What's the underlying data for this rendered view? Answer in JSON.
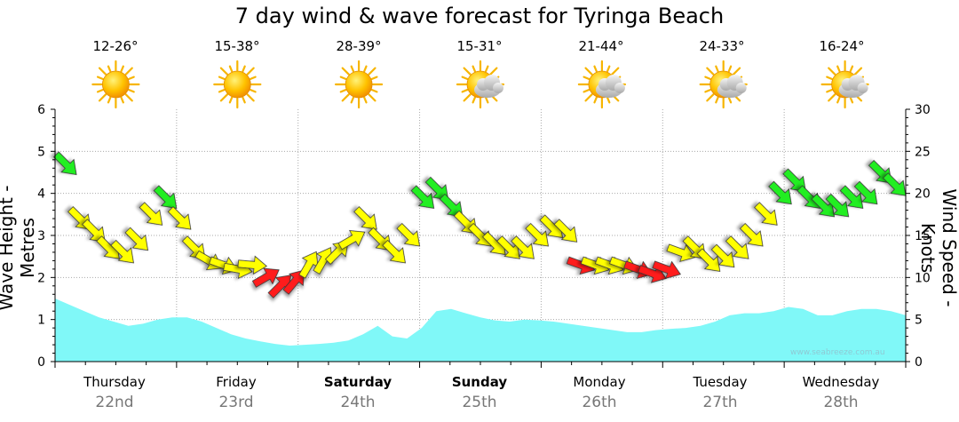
{
  "title": "7 day wind & wave forecast for Tyringa Beach",
  "watermark": "www.seabreeze.com.au",
  "left_axis_title": "Wave Height - Metres",
  "right_axis_title": "Wind Speed - Knots",
  "days": [
    {
      "name": "Thursday",
      "date": "22nd",
      "temp": "12-26°",
      "icon": "sun-icon",
      "bold": false
    },
    {
      "name": "Friday",
      "date": "23rd",
      "temp": "15-38°",
      "icon": "sun-icon",
      "bold": false
    },
    {
      "name": "Saturday",
      "date": "24th",
      "temp": "28-39°",
      "icon": "sun-icon",
      "bold": true
    },
    {
      "name": "Sunday",
      "date": "25th",
      "temp": "15-31°",
      "icon": "sun-cloud-icon",
      "bold": true
    },
    {
      "name": "Monday",
      "date": "26th",
      "temp": "21-44°",
      "icon": "sun-cloud-icon",
      "bold": false
    },
    {
      "name": "Tuesday",
      "date": "27th",
      "temp": "24-33°",
      "icon": "sun-cloud-icon",
      "bold": false
    },
    {
      "name": "Wednesday",
      "date": "28th",
      "temp": "16-24°",
      "icon": "sun-cloud-icon",
      "bold": false
    }
  ],
  "chart_data": {
    "type": "area",
    "left_ticks": [
      "0",
      "1",
      "2",
      "3",
      "4",
      "5",
      "6"
    ],
    "right_ticks": [
      "0",
      "5",
      "10",
      "15",
      "20",
      "25",
      "30"
    ],
    "ylim_left": [
      0,
      6
    ],
    "ylim_right": [
      0,
      30
    ],
    "grid": true,
    "wave_height": {
      "name": "Wave Height - Metres",
      "color": "#80f8f8",
      "values": [
        1.5,
        1.35,
        1.2,
        1.05,
        0.95,
        0.85,
        0.9,
        1.0,
        1.05,
        1.05,
        0.95,
        0.8,
        0.65,
        0.55,
        0.48,
        0.42,
        0.38,
        0.4,
        0.42,
        0.45,
        0.5,
        0.65,
        0.85,
        0.6,
        0.55,
        0.8,
        1.2,
        1.25,
        1.15,
        1.05,
        0.98,
        0.95,
        1.0,
        0.98,
        0.95,
        0.9,
        0.85,
        0.8,
        0.75,
        0.7,
        0.7,
        0.75,
        0.78,
        0.8,
        0.85,
        0.95,
        1.1,
        1.15,
        1.15,
        1.2,
        1.3,
        1.25,
        1.1,
        1.1,
        1.2,
        1.25,
        1.25,
        1.2,
        1.1
      ]
    },
    "wind_speed": {
      "name": "Wind Speed - Knots",
      "color_legend": {
        "light": "#ffff00",
        "moderate": "#00ee00",
        "strong": "#ff0000"
      },
      "points": [
        {
          "k": 23.5,
          "c": "g",
          "d": 135
        },
        {
          "k": 17,
          "c": "y",
          "d": 135
        },
        {
          "k": 15.5,
          "c": "y",
          "d": 135
        },
        {
          "k": 13.5,
          "c": "y",
          "d": 135
        },
        {
          "k": 13,
          "c": "y",
          "d": 135
        },
        {
          "k": 14.5,
          "c": "y",
          "d": 135
        },
        {
          "k": 17.5,
          "c": "y",
          "d": 135
        },
        {
          "k": 19.5,
          "c": "g",
          "d": 135
        },
        {
          "k": 17,
          "c": "y",
          "d": 135
        },
        {
          "k": 13.5,
          "c": "y",
          "d": 135
        },
        {
          "k": 12,
          "c": "y",
          "d": 120
        },
        {
          "k": 11.5,
          "c": "y",
          "d": 110
        },
        {
          "k": 11,
          "c": "y",
          "d": 100
        },
        {
          "k": 11.5,
          "c": "y",
          "d": 95
        },
        {
          "k": 10,
          "c": "r",
          "d": 60
        },
        {
          "k": 9,
          "c": "r",
          "d": 45
        },
        {
          "k": 9.5,
          "c": "r",
          "d": 40
        },
        {
          "k": 11.5,
          "c": "y",
          "d": 30
        },
        {
          "k": 12,
          "c": "y",
          "d": 30
        },
        {
          "k": 13,
          "c": "y",
          "d": 45
        },
        {
          "k": 14.5,
          "c": "y",
          "d": 60
        },
        {
          "k": 17,
          "c": "y",
          "d": 135
        },
        {
          "k": 14.5,
          "c": "y",
          "d": 135
        },
        {
          "k": 13,
          "c": "y",
          "d": 135
        },
        {
          "k": 15,
          "c": "y",
          "d": 135
        },
        {
          "k": 19.5,
          "c": "g",
          "d": 135
        },
        {
          "k": 20.5,
          "c": "g",
          "d": 135
        },
        {
          "k": 18.5,
          "c": "g",
          "d": 135
        },
        {
          "k": 16.5,
          "c": "y",
          "d": 135
        },
        {
          "k": 15,
          "c": "y",
          "d": 135
        },
        {
          "k": 14,
          "c": "y",
          "d": 135
        },
        {
          "k": 13.5,
          "c": "y",
          "d": 135
        },
        {
          "k": 13.5,
          "c": "y",
          "d": 135
        },
        {
          "k": 15,
          "c": "y",
          "d": 135
        },
        {
          "k": 16,
          "c": "y",
          "d": 135
        },
        {
          "k": 15.5,
          "c": "y",
          "d": 135
        },
        {
          "k": 11.5,
          "c": "r",
          "d": 110
        },
        {
          "k": 11.5,
          "c": "y",
          "d": 110
        },
        {
          "k": 11.5,
          "c": "y",
          "d": 110
        },
        {
          "k": 11.5,
          "c": "y",
          "d": 110
        },
        {
          "k": 11,
          "c": "r",
          "d": 110
        },
        {
          "k": 10.5,
          "c": "r",
          "d": 110
        },
        {
          "k": 11,
          "c": "r",
          "d": 110
        },
        {
          "k": 13,
          "c": "y",
          "d": 110
        },
        {
          "k": 13.5,
          "c": "y",
          "d": 135
        },
        {
          "k": 12,
          "c": "y",
          "d": 135
        },
        {
          "k": 12.5,
          "c": "y",
          "d": 135
        },
        {
          "k": 13.5,
          "c": "y",
          "d": 135
        },
        {
          "k": 15,
          "c": "y",
          "d": 135
        },
        {
          "k": 17.5,
          "c": "y",
          "d": 135
        },
        {
          "k": 20,
          "c": "g",
          "d": 135
        },
        {
          "k": 21.5,
          "c": "g",
          "d": 135
        },
        {
          "k": 19.5,
          "c": "g",
          "d": 135
        },
        {
          "k": 18.5,
          "c": "g",
          "d": 135
        },
        {
          "k": 18.5,
          "c": "g",
          "d": 135
        },
        {
          "k": 19.5,
          "c": "g",
          "d": 135
        },
        {
          "k": 20,
          "c": "g",
          "d": 135
        },
        {
          "k": 22.5,
          "c": "g",
          "d": 135
        },
        {
          "k": 21,
          "c": "g",
          "d": 135
        }
      ]
    }
  }
}
